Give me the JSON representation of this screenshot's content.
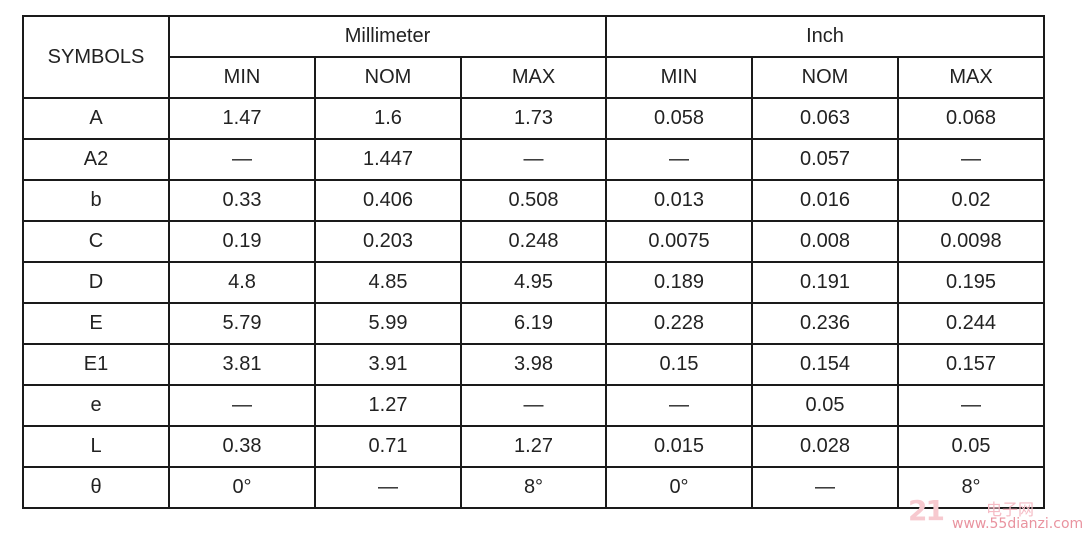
{
  "header": {
    "symbols_label": "SYMBOLS",
    "groups": [
      "Millimeter",
      "Inch"
    ],
    "subheaders": [
      "MIN",
      "NOM",
      "MAX",
      "MIN",
      "NOM",
      "MAX"
    ]
  },
  "rows": [
    {
      "symbol": "A",
      "values": [
        "1.47",
        "1.6",
        "1.73",
        "0.058",
        "0.063",
        "0.068"
      ]
    },
    {
      "symbol": "A2",
      "values": [
        "—",
        "1.447",
        "—",
        "—",
        "0.057",
        "—"
      ]
    },
    {
      "symbol": "b",
      "values": [
        "0.33",
        "0.406",
        "0.508",
        "0.013",
        "0.016",
        "0.02"
      ]
    },
    {
      "symbol": "C",
      "values": [
        "0.19",
        "0.203",
        "0.248",
        "0.0075",
        "0.008",
        "0.0098"
      ]
    },
    {
      "symbol": "D",
      "values": [
        "4.8",
        "4.85",
        "4.95",
        "0.189",
        "0.191",
        "0.195"
      ]
    },
    {
      "symbol": "E",
      "values": [
        "5.79",
        "5.99",
        "6.19",
        "0.228",
        "0.236",
        "0.244"
      ]
    },
    {
      "symbol": "E1",
      "values": [
        "3.81",
        "3.91",
        "3.98",
        "0.15",
        "0.154",
        "0.157"
      ]
    },
    {
      "symbol": "e",
      "values": [
        "—",
        "1.27",
        "—",
        "—",
        "0.05",
        "—"
      ]
    },
    {
      "symbol": "L",
      "values": [
        "0.38",
        "0.71",
        "1.27",
        "0.015",
        "0.028",
        "0.05"
      ]
    },
    {
      "symbol": "θ",
      "values": [
        "0°",
        "—",
        "8°",
        "0°",
        "—",
        "8°"
      ]
    }
  ],
  "watermark": {
    "number": "21",
    "site_cn": "电子网",
    "url": "www.55dianzi.com"
  }
}
